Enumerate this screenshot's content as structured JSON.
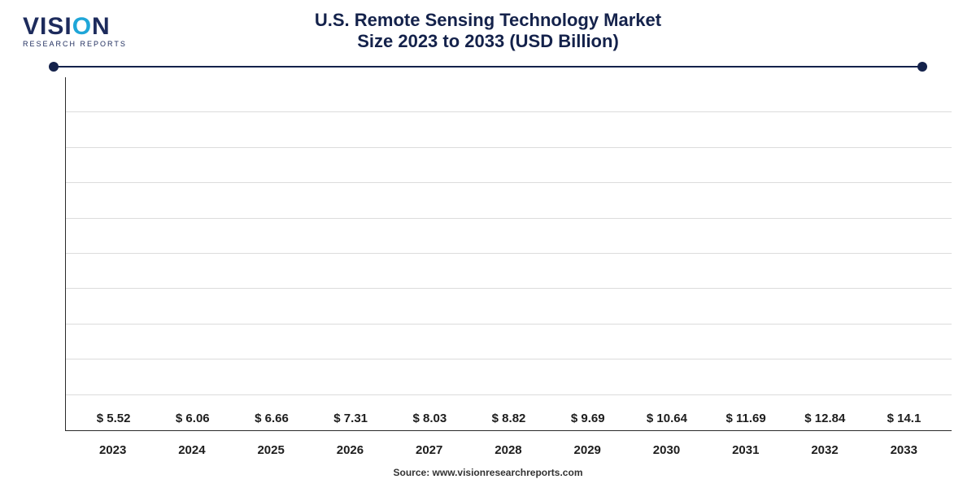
{
  "logo": {
    "pre": "VISI",
    "accent": "O",
    "post": "N",
    "sub": "RESEARCH REPORTS",
    "color_main": "#1d2b5c",
    "color_accent": "#1fa6d8"
  },
  "title": {
    "line1": "U.S. Remote Sensing Technology Market",
    "line2": "Size 2023 to 2033 (USD Billion)",
    "fontsize": 22,
    "color": "#14224b"
  },
  "rule": {
    "color": "#14224b"
  },
  "chart": {
    "type": "bar",
    "categories": [
      "2023",
      "2024",
      "2025",
      "2026",
      "2027",
      "2028",
      "2029",
      "2030",
      "2031",
      "2032",
      "2033"
    ],
    "values": [
      5.52,
      6.06,
      6.66,
      7.31,
      8.03,
      8.82,
      9.69,
      10.64,
      11.69,
      12.84,
      14.1
    ],
    "value_labels": [
      "$ 5.52",
      "$ 6.06",
      "$ 6.66",
      "$ 7.31",
      "$ 8.03",
      "$ 8.82",
      "$ 9.69",
      "$ 10.64",
      "$ 11.69",
      "$ 12.84",
      "$ 14.1"
    ],
    "bar_colors": [
      "#2eb9ec",
      "#14a9e0",
      "#0f98cf",
      "#0d86ba",
      "#0e74a4",
      "#126290",
      "#17517c",
      "#1a426b",
      "#1c345c",
      "#1b294f",
      "#171f41"
    ],
    "ymax": 15.5,
    "gridline_count": 9,
    "grid_color": "#dcdcdc",
    "axis_color": "#2a2a2a",
    "label_fontsize": 15,
    "label_color": "#1d1d1d",
    "bar_width_pct": 68,
    "background_color": "#ffffff"
  },
  "source": {
    "text": "Source: www.visionresearchreports.com",
    "fontsize": 12,
    "color": "#333333"
  }
}
